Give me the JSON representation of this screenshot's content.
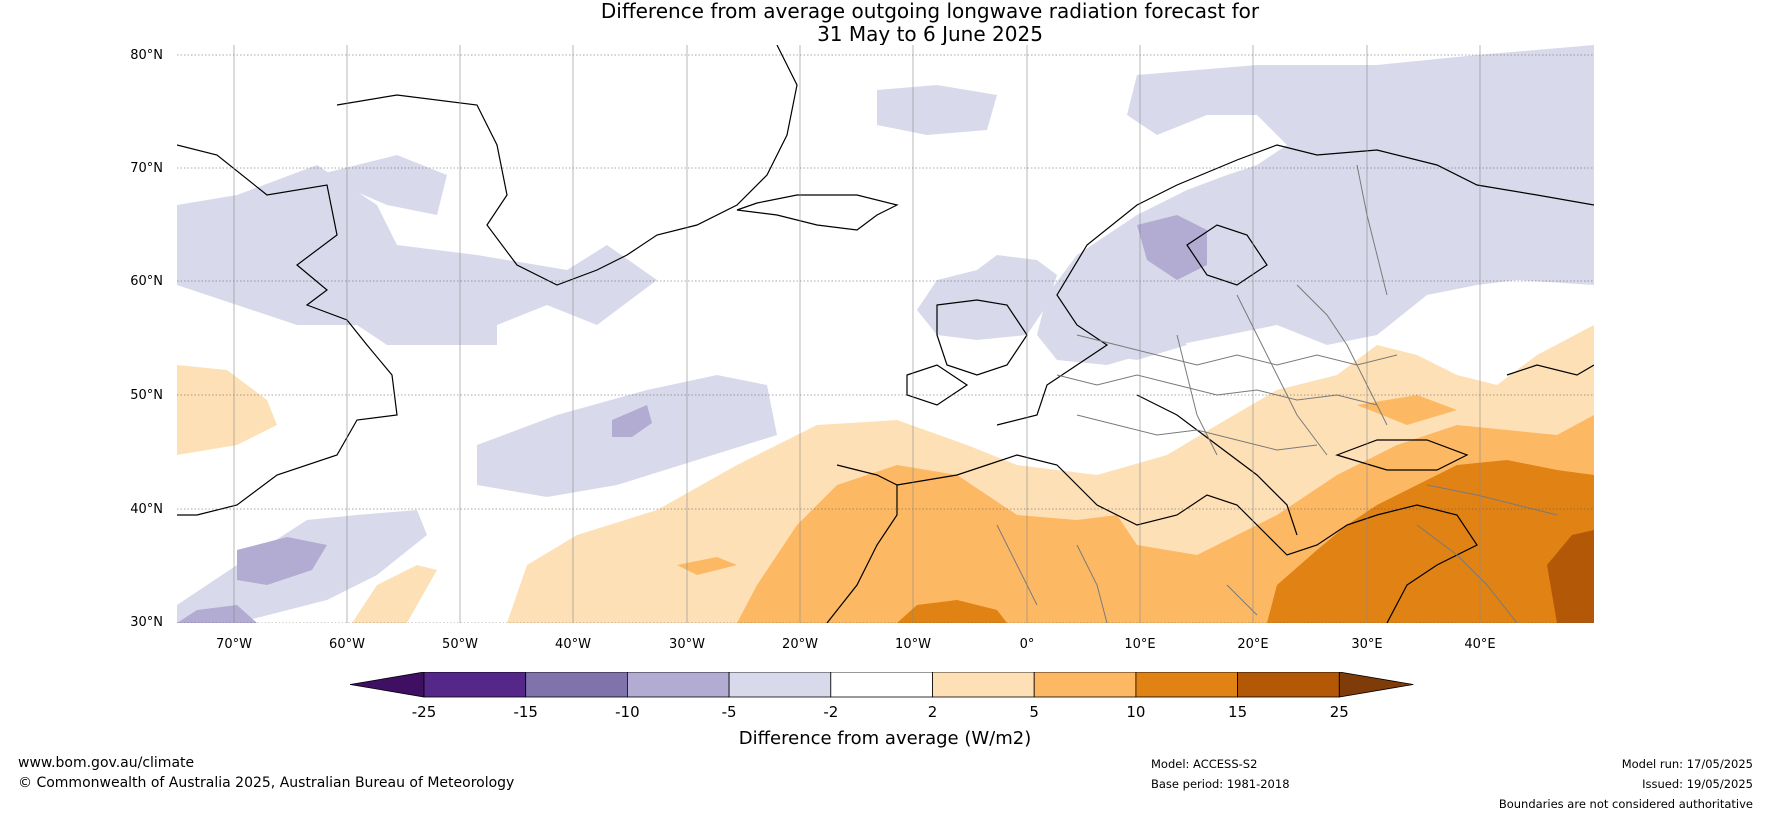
{
  "title": {
    "line1": "Difference from average outgoing longwave radiation forecast for",
    "line2": "31 May to 6 June 2025"
  },
  "map": {
    "lat_labels": [
      "80°N",
      "70°N",
      "60°N",
      "50°N",
      "40°N",
      "30°N"
    ],
    "lon_labels": [
      "70°W",
      "60°W",
      "50°W",
      "40°W",
      "30°W",
      "20°W",
      "10°W",
      "0°",
      "10°E",
      "20°E",
      "30°E",
      "40°E"
    ]
  },
  "legend": {
    "ticks": [
      "-25",
      "-15",
      "-10",
      "-5",
      "-2",
      "2",
      "5",
      "10",
      "15",
      "25"
    ],
    "colors": [
      "#3f0f63",
      "#542788",
      "#8073ac",
      "#b2abd2",
      "#d8daeb",
      "#ffffff",
      "#fee0b6",
      "#fdb863",
      "#e08214",
      "#b35806",
      "#7f3b08"
    ],
    "label": "Difference from average (W/m2)"
  },
  "footer": {
    "website": "www.bom.gov.au/climate",
    "copyright": "© Commonwealth of Australia 2025, Australian Bureau of Meteorology",
    "model": "Model: ACCESS-S2",
    "base_period": "Base period: 1981-2018",
    "model_run": "Model run: 17/05/2025",
    "issued": "Issued: 19/05/2025",
    "disclaimer": "Boundaries are not considered authoritative"
  }
}
